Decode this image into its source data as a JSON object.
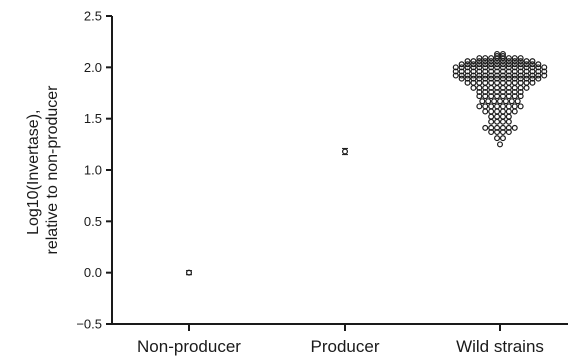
{
  "chart_data": {
    "type": "scatter",
    "ylabel_lines": [
      "Log10(Invertase),",
      "relative to non-producer"
    ],
    "ylim": [
      -0.5,
      2.5
    ],
    "yticks": [
      "−0.5",
      "0.0",
      "0.5",
      "1.0",
      "1.5",
      "2.0",
      "2.5"
    ],
    "categories": [
      "Non-producer",
      "Producer",
      "Wild strains"
    ],
    "grid": false,
    "legend": "none",
    "colors": {
      "marker": "#1a1a1a",
      "axis": "#1a1a1a"
    },
    "series": [
      {
        "category": "Non-producer",
        "values": [
          0.0
        ],
        "error_bar": 0.02
      },
      {
        "category": "Producer",
        "values": [
          1.18
        ],
        "error_bar": 0.03
      },
      {
        "category": "Wild strains",
        "values": [
          2.13,
          2.11,
          2.11,
          2.13,
          2.09,
          2.09,
          2.09,
          2.09,
          2.09,
          2.09,
          2.09,
          2.09,
          2.06,
          2.06,
          2.06,
          2.06,
          2.06,
          2.06,
          2.06,
          2.06,
          2.06,
          2.06,
          2.06,
          2.06,
          2.03,
          2.03,
          2.03,
          2.03,
          2.03,
          2.03,
          2.03,
          2.03,
          2.03,
          2.03,
          2.03,
          2.03,
          2.03,
          2.03,
          2.0,
          2.0,
          2.0,
          2.0,
          2.0,
          2.0,
          2.0,
          2.0,
          2.0,
          2.0,
          2.0,
          2.0,
          2.0,
          2.0,
          2.0,
          2.0,
          1.96,
          1.96,
          1.96,
          1.96,
          1.96,
          1.96,
          1.96,
          1.96,
          1.96,
          1.96,
          1.96,
          1.96,
          1.96,
          1.96,
          1.96,
          1.96,
          1.92,
          1.92,
          1.92,
          1.92,
          1.92,
          1.92,
          1.92,
          1.92,
          1.92,
          1.92,
          1.92,
          1.92,
          1.92,
          1.92,
          1.92,
          1.92,
          1.89,
          1.89,
          1.89,
          1.89,
          1.89,
          1.89,
          1.89,
          1.89,
          1.89,
          1.89,
          1.89,
          1.89,
          1.89,
          1.89,
          1.85,
          1.85,
          1.85,
          1.85,
          1.85,
          1.85,
          1.85,
          1.85,
          1.85,
          1.85,
          1.85,
          1.85,
          1.8,
          1.8,
          1.8,
          1.8,
          1.8,
          1.8,
          1.8,
          1.8,
          1.8,
          1.8,
          1.76,
          1.76,
          1.76,
          1.76,
          1.76,
          1.76,
          1.76,
          1.76,
          1.72,
          1.72,
          1.72,
          1.72,
          1.72,
          1.72,
          1.72,
          1.72,
          1.67,
          1.67,
          1.67,
          1.67,
          1.67,
          1.67,
          1.67,
          1.62,
          1.62,
          1.62,
          1.62,
          1.62,
          1.62,
          1.62,
          1.62,
          1.57,
          1.57,
          1.57,
          1.57,
          1.57,
          1.57,
          1.52,
          1.52,
          1.52,
          1.52,
          1.47,
          1.47,
          1.47,
          1.47,
          1.41,
          1.41,
          1.41,
          1.41,
          1.41,
          1.41,
          1.37,
          1.37,
          1.37,
          1.37,
          1.31,
          1.31,
          1.25
        ]
      }
    ]
  }
}
